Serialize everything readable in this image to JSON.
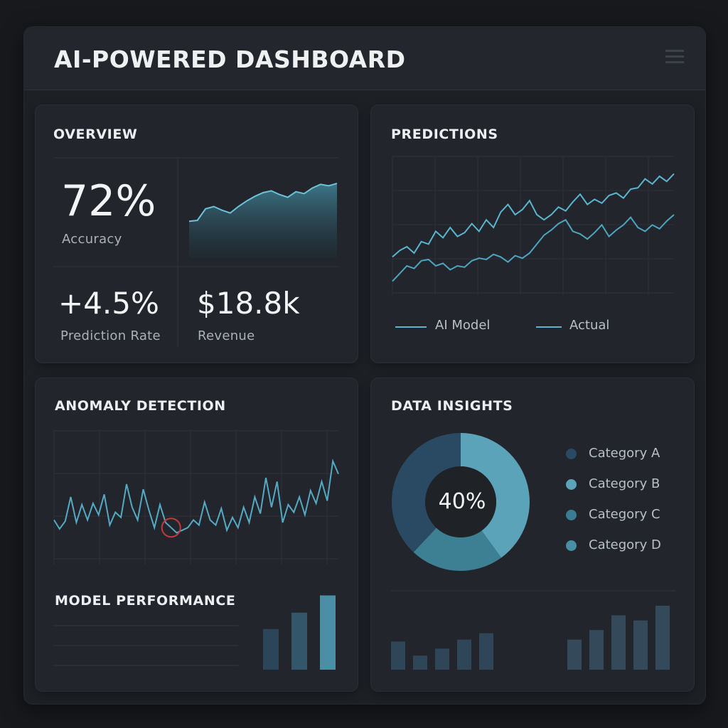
{
  "header": {
    "title": "AI-POWERED DASHBOARD",
    "menu_icon": "hamburger-menu-icon"
  },
  "overview": {
    "title": "OVERVIEW",
    "accuracy": {
      "value": "72%",
      "label": "Accuracy"
    },
    "prediction_rate": {
      "value": "+4.5%",
      "label": "Prediction Rate"
    },
    "revenue": {
      "value": "$18.8k",
      "label": "Revenue"
    },
    "sparkline": [
      0.18,
      0.2,
      0.45,
      0.5,
      0.42,
      0.36,
      0.5,
      0.62,
      0.72,
      0.8,
      0.84,
      0.76,
      0.7,
      0.82,
      0.78,
      0.9,
      0.98,
      0.95,
      1.0
    ]
  },
  "predictions": {
    "title": "PREDICTIONS",
    "legend": [
      "AI Model",
      "Actual"
    ],
    "chart_data": {
      "type": "line",
      "title": "",
      "xlabel": "",
      "ylabel": "",
      "x": [
        0,
        1,
        2,
        3,
        4,
        5,
        6,
        7,
        8,
        9,
        10,
        11,
        12,
        13,
        14,
        15,
        16,
        17,
        18,
        19,
        20,
        21,
        22,
        23,
        24,
        25,
        26,
        27,
        28,
        29,
        30,
        31,
        32,
        33,
        34,
        35,
        36,
        37,
        38,
        39
      ],
      "ylim": [
        0,
        1
      ],
      "series": [
        {
          "name": "AI Model",
          "values": [
            0.27,
            0.32,
            0.35,
            0.3,
            0.39,
            0.37,
            0.47,
            0.42,
            0.5,
            0.43,
            0.46,
            0.53,
            0.47,
            0.56,
            0.5,
            0.62,
            0.68,
            0.6,
            0.64,
            0.71,
            0.6,
            0.56,
            0.6,
            0.66,
            0.63,
            0.7,
            0.76,
            0.68,
            0.72,
            0.69,
            0.75,
            0.77,
            0.73,
            0.8,
            0.81,
            0.88,
            0.84,
            0.9,
            0.86,
            0.92
          ]
        },
        {
          "name": "Actual",
          "values": [
            0.08,
            0.14,
            0.2,
            0.18,
            0.24,
            0.25,
            0.2,
            0.22,
            0.17,
            0.2,
            0.19,
            0.24,
            0.26,
            0.25,
            0.29,
            0.27,
            0.23,
            0.28,
            0.26,
            0.3,
            0.37,
            0.44,
            0.48,
            0.53,
            0.56,
            0.47,
            0.45,
            0.41,
            0.46,
            0.52,
            0.43,
            0.48,
            0.52,
            0.58,
            0.5,
            0.47,
            0.52,
            0.49,
            0.55,
            0.6
          ]
        }
      ],
      "grid": true
    }
  },
  "anomaly": {
    "title": "ANOMALY DETECTION",
    "chart_data": {
      "type": "line",
      "title": "",
      "xlabel": "",
      "ylabel": "",
      "ylim": [
        0,
        1
      ],
      "values": [
        0.32,
        0.25,
        0.31,
        0.5,
        0.3,
        0.44,
        0.32,
        0.45,
        0.36,
        0.52,
        0.28,
        0.38,
        0.34,
        0.6,
        0.42,
        0.32,
        0.56,
        0.4,
        0.26,
        0.44,
        0.3,
        0.26,
        0.22,
        0.24,
        0.26,
        0.32,
        0.28,
        0.46,
        0.32,
        0.28,
        0.41,
        0.24,
        0.34,
        0.26,
        0.42,
        0.3,
        0.5,
        0.37,
        0.65,
        0.42,
        0.62,
        0.3,
        0.44,
        0.38,
        0.5,
        0.36,
        0.55,
        0.45,
        0.62,
        0.47,
        0.78,
        0.68
      ],
      "anomaly_index": 21,
      "grid": true
    }
  },
  "model_performance": {
    "title": "MODEL PERFORMANCE",
    "chart_data": {
      "type": "bar",
      "title": "",
      "values": [
        0.52,
        0.73,
        0.95
      ],
      "ylim": [
        0,
        1
      ]
    }
  },
  "insights": {
    "title": "DATA INSIGHTS",
    "center_label": "40%",
    "categories": [
      {
        "label": "Category A",
        "color": "#2a4a64"
      },
      {
        "label": "Category B",
        "color": "#5aa3b8"
      },
      {
        "label": "Category C",
        "color": "#3a7c91"
      },
      {
        "label": "Category D",
        "color": "#4a8ea6"
      }
    ],
    "chart_data": {
      "type": "pie",
      "title": "",
      "labels": [
        "Category B",
        "Category C",
        "Category A"
      ],
      "values": [
        40,
        22,
        38
      ],
      "colors": [
        "#5aa3b8",
        "#3d7f93",
        "#2a4a64"
      ]
    },
    "bars": {
      "type": "bar",
      "title": "",
      "values": [
        0.44,
        0.22,
        0.33,
        0.47,
        0.57,
        0,
        0,
        0,
        0.47,
        0.62,
        0.85,
        0.77,
        1.0
      ],
      "ylim": [
        0,
        1
      ]
    }
  }
}
